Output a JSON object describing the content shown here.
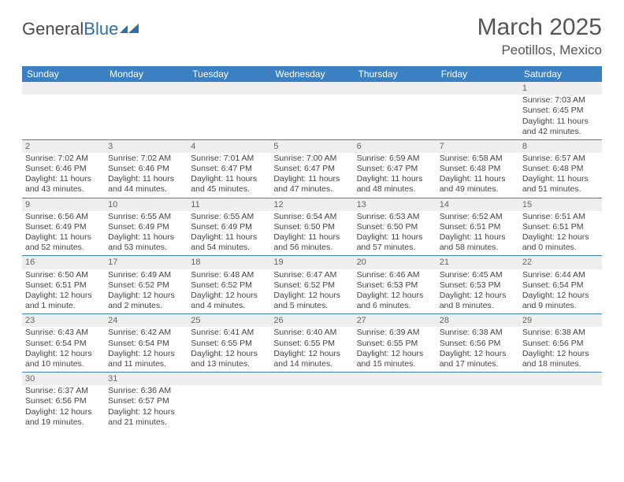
{
  "logo": {
    "text_general": "General",
    "text_blue": "Blue"
  },
  "header": {
    "month": "March 2025",
    "location": "Peotillos, Mexico"
  },
  "colors": {
    "header_bg": "#3a80c3",
    "header_text": "#ffffff",
    "daynum_bg": "#eeeeee",
    "cell_border": "#3a80c3",
    "logo_blue": "#2f6fab"
  },
  "weekdays": [
    "Sunday",
    "Monday",
    "Tuesday",
    "Wednesday",
    "Thursday",
    "Friday",
    "Saturday"
  ],
  "weeks": [
    [
      null,
      null,
      null,
      null,
      null,
      null,
      {
        "n": "1",
        "sunrise": "7:03 AM",
        "sunset": "6:45 PM",
        "daylight": "11 hours and 42 minutes."
      }
    ],
    [
      {
        "n": "2",
        "sunrise": "7:02 AM",
        "sunset": "6:46 PM",
        "daylight": "11 hours and 43 minutes."
      },
      {
        "n": "3",
        "sunrise": "7:02 AM",
        "sunset": "6:46 PM",
        "daylight": "11 hours and 44 minutes."
      },
      {
        "n": "4",
        "sunrise": "7:01 AM",
        "sunset": "6:47 PM",
        "daylight": "11 hours and 45 minutes."
      },
      {
        "n": "5",
        "sunrise": "7:00 AM",
        "sunset": "6:47 PM",
        "daylight": "11 hours and 47 minutes."
      },
      {
        "n": "6",
        "sunrise": "6:59 AM",
        "sunset": "6:47 PM",
        "daylight": "11 hours and 48 minutes."
      },
      {
        "n": "7",
        "sunrise": "6:58 AM",
        "sunset": "6:48 PM",
        "daylight": "11 hours and 49 minutes."
      },
      {
        "n": "8",
        "sunrise": "6:57 AM",
        "sunset": "6:48 PM",
        "daylight": "11 hours and 51 minutes."
      }
    ],
    [
      {
        "n": "9",
        "sunrise": "6:56 AM",
        "sunset": "6:49 PM",
        "daylight": "11 hours and 52 minutes."
      },
      {
        "n": "10",
        "sunrise": "6:55 AM",
        "sunset": "6:49 PM",
        "daylight": "11 hours and 53 minutes."
      },
      {
        "n": "11",
        "sunrise": "6:55 AM",
        "sunset": "6:49 PM",
        "daylight": "11 hours and 54 minutes."
      },
      {
        "n": "12",
        "sunrise": "6:54 AM",
        "sunset": "6:50 PM",
        "daylight": "11 hours and 56 minutes."
      },
      {
        "n": "13",
        "sunrise": "6:53 AM",
        "sunset": "6:50 PM",
        "daylight": "11 hours and 57 minutes."
      },
      {
        "n": "14",
        "sunrise": "6:52 AM",
        "sunset": "6:51 PM",
        "daylight": "11 hours and 58 minutes."
      },
      {
        "n": "15",
        "sunrise": "6:51 AM",
        "sunset": "6:51 PM",
        "daylight": "12 hours and 0 minutes."
      }
    ],
    [
      {
        "n": "16",
        "sunrise": "6:50 AM",
        "sunset": "6:51 PM",
        "daylight": "12 hours and 1 minute."
      },
      {
        "n": "17",
        "sunrise": "6:49 AM",
        "sunset": "6:52 PM",
        "daylight": "12 hours and 2 minutes."
      },
      {
        "n": "18",
        "sunrise": "6:48 AM",
        "sunset": "6:52 PM",
        "daylight": "12 hours and 4 minutes."
      },
      {
        "n": "19",
        "sunrise": "6:47 AM",
        "sunset": "6:52 PM",
        "daylight": "12 hours and 5 minutes."
      },
      {
        "n": "20",
        "sunrise": "6:46 AM",
        "sunset": "6:53 PM",
        "daylight": "12 hours and 6 minutes."
      },
      {
        "n": "21",
        "sunrise": "6:45 AM",
        "sunset": "6:53 PM",
        "daylight": "12 hours and 8 minutes."
      },
      {
        "n": "22",
        "sunrise": "6:44 AM",
        "sunset": "6:54 PM",
        "daylight": "12 hours and 9 minutes."
      }
    ],
    [
      {
        "n": "23",
        "sunrise": "6:43 AM",
        "sunset": "6:54 PM",
        "daylight": "12 hours and 10 minutes."
      },
      {
        "n": "24",
        "sunrise": "6:42 AM",
        "sunset": "6:54 PM",
        "daylight": "12 hours and 11 minutes."
      },
      {
        "n": "25",
        "sunrise": "6:41 AM",
        "sunset": "6:55 PM",
        "daylight": "12 hours and 13 minutes."
      },
      {
        "n": "26",
        "sunrise": "6:40 AM",
        "sunset": "6:55 PM",
        "daylight": "12 hours and 14 minutes."
      },
      {
        "n": "27",
        "sunrise": "6:39 AM",
        "sunset": "6:55 PM",
        "daylight": "12 hours and 15 minutes."
      },
      {
        "n": "28",
        "sunrise": "6:38 AM",
        "sunset": "6:56 PM",
        "daylight": "12 hours and 17 minutes."
      },
      {
        "n": "29",
        "sunrise": "6:38 AM",
        "sunset": "6:56 PM",
        "daylight": "12 hours and 18 minutes."
      }
    ],
    [
      {
        "n": "30",
        "sunrise": "6:37 AM",
        "sunset": "6:56 PM",
        "daylight": "12 hours and 19 minutes."
      },
      {
        "n": "31",
        "sunrise": "6:36 AM",
        "sunset": "6:57 PM",
        "daylight": "12 hours and 21 minutes."
      },
      null,
      null,
      null,
      null,
      null
    ]
  ],
  "labels": {
    "sunrise": "Sunrise: ",
    "sunset": "Sunset: ",
    "daylight": "Daylight: "
  }
}
